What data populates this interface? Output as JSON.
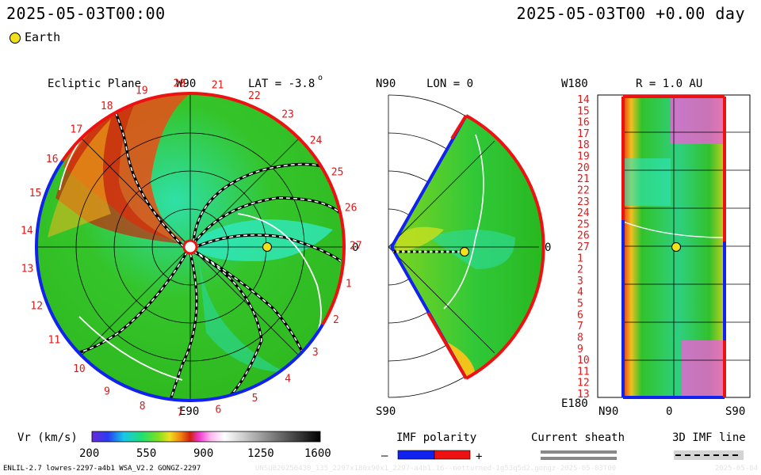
{
  "header": {
    "left_time": "2025-05-03T00:00",
    "right_time": "2025-05-03T00 +0.00 day",
    "legend_marker_label": "Earth"
  },
  "ecliptic": {
    "title": "Ecliptic Plane",
    "top_label": "W90",
    "bottom_label": "E90",
    "right_label": "0",
    "lat_label": "LAT = -3.8",
    "lat_deg": "o",
    "day_ticks": [
      "20",
      "21",
      "22",
      "23",
      "24",
      "25",
      "26",
      "27",
      "1",
      "2",
      "3",
      "4",
      "5",
      "6",
      "7",
      "8",
      "9",
      "10",
      "11",
      "12",
      "13",
      "14",
      "15",
      "16",
      "17",
      "18",
      "19"
    ]
  },
  "meridional": {
    "top_label": "N90",
    "bottom_label": "S90",
    "lon_label": "LON = 0",
    "right_label": "0"
  },
  "radial": {
    "top_label": "W180",
    "bottom_label": "E180",
    "title": "R = 1.0 AU",
    "x_labels": [
      "N90",
      "0",
      "S90"
    ],
    "y_ticks": [
      "14",
      "15",
      "16",
      "17",
      "18",
      "19",
      "20",
      "21",
      "22",
      "23",
      "24",
      "25",
      "26",
      "27",
      "1",
      "2",
      "3",
      "4",
      "5",
      "6",
      "7",
      "8",
      "9",
      "10",
      "11",
      "12",
      "13"
    ]
  },
  "colorbar": {
    "label": "Vr (km/s)",
    "ticks": [
      "200",
      "550",
      "900",
      "1250",
      "1600"
    ]
  },
  "legends": {
    "imf_title": "IMF polarity",
    "imf_minus": "–",
    "imf_plus": "+",
    "sheath_title": "Current sheath",
    "imf3d_title": "3D IMF line"
  },
  "footer": {
    "model": "ENLIL-2.7 lowres-2297-a4b1 WSA_V2.2 GONGZ-2297",
    "run_id": "UNSUB20250430_135_2297x180x90x1_2297-a4b1.16--notturned-1g53q5d2.gongz-2025-05-03T00",
    "stamp": "2025-05-04"
  },
  "colors": {
    "slow_wind": "#24c41e",
    "fast_wind": "#d42c10",
    "positive_polarity": "#ee1111",
    "negative_polarity": "#1122ee",
    "earth_marker": "#f2e11a"
  }
}
